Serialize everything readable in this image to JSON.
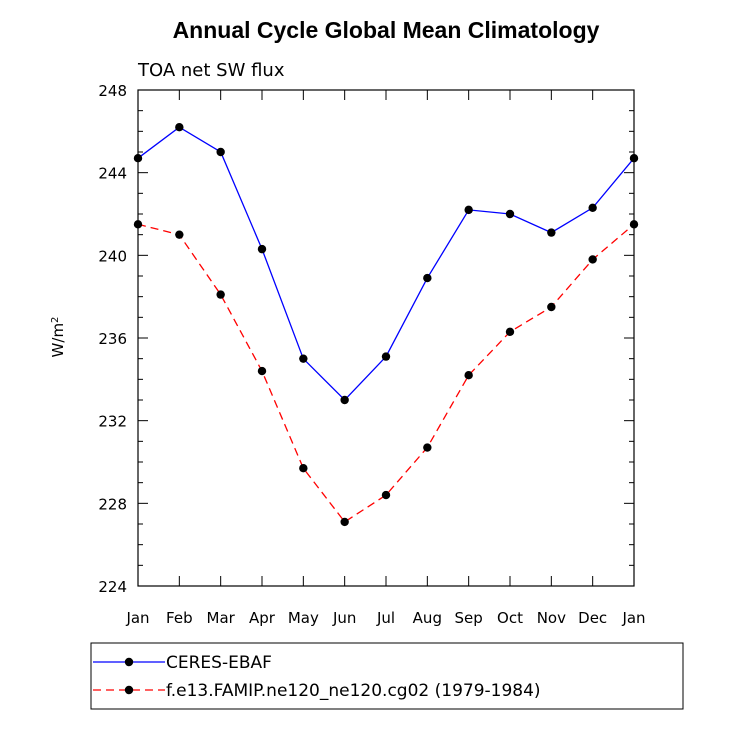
{
  "chart_data": {
    "type": "line",
    "title": "Annual Cycle Global Mean Climatology",
    "subtitle": "TOA net SW flux",
    "ylabel": "W/m",
    "ylabel_sup": "2",
    "xlabel": "",
    "categories": [
      "Jan",
      "Feb",
      "Mar",
      "Apr",
      "May",
      "Jun",
      "Jul",
      "Aug",
      "Sep",
      "Oct",
      "Nov",
      "Dec",
      "Jan"
    ],
    "ylim": [
      224,
      248
    ],
    "yticks": [
      224,
      228,
      232,
      236,
      240,
      244,
      248
    ],
    "series": [
      {
        "name": "CERES-EBAF",
        "color": "#0000ff",
        "dash": "solid",
        "values": [
          244.7,
          246.2,
          245.0,
          240.3,
          235.0,
          233.0,
          235.1,
          238.9,
          242.2,
          242.0,
          241.1,
          242.3,
          244.7
        ]
      },
      {
        "name": "f.e13.FAMIP.ne120_ne120.cg02 (1979-1984)",
        "color": "#ff0000",
        "dash": "dashed",
        "values": [
          241.5,
          241.0,
          238.1,
          234.4,
          229.7,
          227.1,
          228.4,
          230.7,
          234.2,
          236.3,
          237.5,
          239.8,
          241.5
        ]
      }
    ],
    "legend_position": "bottom"
  }
}
